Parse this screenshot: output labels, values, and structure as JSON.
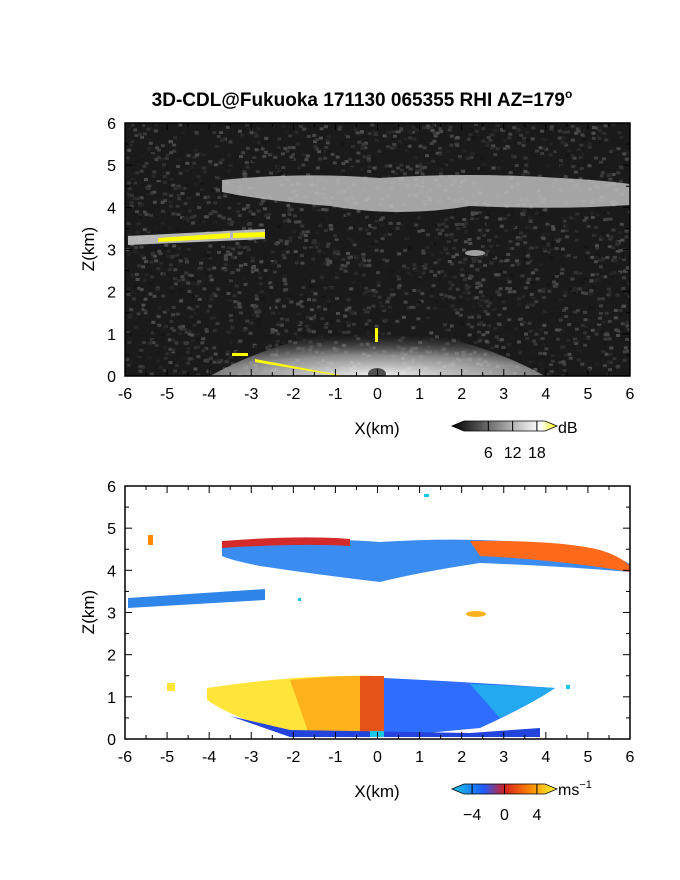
{
  "figure": {
    "title": "3D-CDL@Fukuoka 171130 065355 RHI AZ=179",
    "title_superscript": "o"
  },
  "chart_data": [
    {
      "type": "heatmap",
      "panel": "top",
      "quantity": "backscatter intensity",
      "xlabel": "X(km)",
      "ylabel": "Z(km)",
      "xlim": [
        -6,
        6
      ],
      "ylim": [
        0,
        6
      ],
      "xticks": [
        "-6",
        "-5",
        "-4",
        "-3",
        "-2",
        "-1",
        "0",
        "1",
        "2",
        "3",
        "4",
        "5",
        "6"
      ],
      "yticks": [
        "0",
        "1",
        "2",
        "3",
        "4",
        "5",
        "6"
      ],
      "background": "noise (dark gray)",
      "features": [
        {
          "label": "cloud layer",
          "x": [
            -3.8,
            6.0
          ],
          "z": [
            3.9,
            4.7
          ],
          "shade": "light gray"
        },
        {
          "label": "cloud layer (low)",
          "x": [
            -6.0,
            -2.7
          ],
          "z": [
            3.2,
            3.45
          ],
          "shade": "light gray / yellow"
        },
        {
          "label": "small echo",
          "x": [
            2.2,
            2.6
          ],
          "z": [
            2.85,
            3.0
          ],
          "shade": "gray"
        },
        {
          "label": "near-range fan",
          "x": [
            -4.0,
            4.0
          ],
          "z": [
            0.0,
            1.5
          ],
          "shade": "white to gray"
        }
      ],
      "colorbar": {
        "unit": "dB",
        "ticks": [
          "6",
          "12",
          "18"
        ],
        "range": [
          0,
          20
        ],
        "colors": [
          "#000000",
          "#ffffff",
          "#ffff00"
        ]
      }
    },
    {
      "type": "heatmap",
      "panel": "bottom",
      "quantity": "Doppler velocity",
      "xlabel": "X(km)",
      "ylabel": "Z(km)",
      "xlim": [
        -6,
        6
      ],
      "ylim": [
        0,
        6
      ],
      "xticks": [
        "-6",
        "-5",
        "-4",
        "-3",
        "-2",
        "-1",
        "0",
        "1",
        "2",
        "3",
        "4",
        "5",
        "6"
      ],
      "yticks": [
        "0",
        "1",
        "2",
        "3",
        "4",
        "5",
        "6"
      ],
      "features": [
        {
          "label": "cloud layer",
          "x": [
            -3.8,
            6.0
          ],
          "z": [
            3.9,
            4.8
          ],
          "velocity": -3
        },
        {
          "label": "cloud layer top edge",
          "x": [
            -3.8,
            6.0
          ],
          "z": [
            4.3,
            4.8
          ],
          "velocity": 3
        },
        {
          "label": "cloud layer (low)",
          "x": [
            -6.0,
            -2.7
          ],
          "z": [
            3.1,
            3.45
          ],
          "velocity": -3.5
        },
        {
          "label": "small echo",
          "x": [
            2.2,
            2.6
          ],
          "z": [
            2.85,
            3.0
          ],
          "velocity": 4
        },
        {
          "label": "near-range fan (left)",
          "x": [
            -4.0,
            0.0
          ],
          "z": [
            0.0,
            1.5
          ],
          "velocity": 3
        },
        {
          "label": "near-range fan (right)",
          "x": [
            0.0,
            4.5
          ],
          "z": [
            0.0,
            1.4
          ],
          "velocity": -3
        }
      ],
      "colorbar": {
        "unit": "ms",
        "unit_superscript": "−1",
        "ticks": [
          "−4",
          "0",
          "4"
        ],
        "range": [
          -5,
          5
        ],
        "colors": [
          "#1aa8ff",
          "#1e3cff",
          "#d41f1f",
          "#ff7a00",
          "#ffff33"
        ]
      }
    }
  ]
}
